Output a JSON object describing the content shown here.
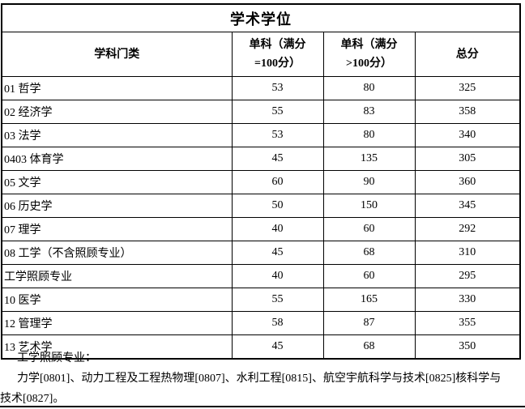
{
  "page": {
    "background_color": "#ffffff",
    "text_color": "#000000",
    "border_color": "#000000"
  },
  "table": {
    "title": "学术学位",
    "header": {
      "category": "学科门类",
      "single_eq": {
        "line1": "单科（满分",
        "line2": "=100分）"
      },
      "single_gt": {
        "line1": "单科（满分",
        "line2": ">100分）"
      },
      "total": "总分"
    },
    "rows": [
      {
        "category": "01 哲学",
        "single_eq": "53",
        "single_gt": "80",
        "total": "325"
      },
      {
        "category": "02 经济学",
        "single_eq": "55",
        "single_gt": "83",
        "total": "358"
      },
      {
        "category": "03 法学",
        "single_eq": "53",
        "single_gt": "80",
        "total": "340"
      },
      {
        "category": "0403 体育学",
        "single_eq": "45",
        "single_gt": "135",
        "total": "305"
      },
      {
        "category": "05 文学",
        "single_eq": "60",
        "single_gt": "90",
        "total": "360"
      },
      {
        "category": "06 历史学",
        "single_eq": "50",
        "single_gt": "150",
        "total": "345"
      },
      {
        "category": "07 理学",
        "single_eq": "40",
        "single_gt": "60",
        "total": "292"
      },
      {
        "category": "08 工学（不含照顾专业）",
        "single_eq": "45",
        "single_gt": "68",
        "total": "310"
      },
      {
        "category": "工学照顾专业",
        "single_eq": "40",
        "single_gt": "60",
        "total": "295"
      },
      {
        "category": "10 医学",
        "single_eq": "55",
        "single_gt": "165",
        "total": "330"
      },
      {
        "category": "12 管理学",
        "single_eq": "58",
        "single_gt": "87",
        "total": "355"
      },
      {
        "category": "13 艺术学",
        "single_eq": "45",
        "single_gt": "68",
        "total": "350"
      }
    ]
  },
  "footer": {
    "label": "工学照顾专业：",
    "note_lines": [
      "力学[0801]、动力工程及工程热物理[0807]、水利工程[0815]、航空宇航科学与技术[0825]核科学与",
      "技术[0827]。"
    ]
  }
}
